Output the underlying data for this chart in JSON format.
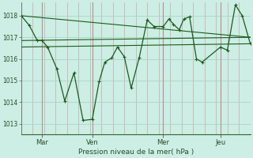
{
  "xlabel": "Pression niveau de la mer( hPa )",
  "bg_color": "#cceee4",
  "grid_color_h": "#aad4c8",
  "grid_color_v": "#c8a8a8",
  "line_color": "#1a5c1a",
  "ylim": [
    1012.5,
    1018.6
  ],
  "xlim": [
    0.0,
    10.0
  ],
  "yticks": [
    1013,
    1014,
    1015,
    1016,
    1017,
    1018
  ],
  "xtick_positions": [
    0.9,
    3.1,
    6.2,
    8.7
  ],
  "xtick_labels": [
    "Mar",
    "Ven",
    "Mer",
    "Jeu"
  ],
  "vline_positions": [
    0.9,
    3.1,
    6.2,
    8.7
  ],
  "num_vlines": 20,
  "main_series_x": [
    0.0,
    0.35,
    0.7,
    0.9,
    1.15,
    1.55,
    1.9,
    2.3,
    2.7,
    3.1,
    3.4,
    3.65,
    3.95,
    4.2,
    4.5,
    4.8,
    5.15,
    5.5,
    5.8,
    6.2,
    6.45,
    6.65,
    6.9,
    7.1,
    7.35,
    7.65,
    7.9,
    8.7,
    9.0,
    9.35,
    9.65,
    10.0
  ],
  "main_series_y": [
    1018.0,
    1017.55,
    1016.85,
    1016.85,
    1016.55,
    1015.55,
    1014.05,
    1015.35,
    1013.15,
    1013.2,
    1014.95,
    1015.85,
    1016.05,
    1016.55,
    1016.1,
    1014.65,
    1016.05,
    1017.8,
    1017.5,
    1017.5,
    1017.85,
    1017.6,
    1017.35,
    1017.85,
    1017.95,
    1016.0,
    1015.85,
    1016.55,
    1016.4,
    1018.5,
    1018.0,
    1016.7
  ],
  "trend_lines": [
    {
      "x": [
        0.0,
        10.0
      ],
      "y": [
        1018.0,
        1017.0
      ]
    },
    {
      "x": [
        0.0,
        10.0
      ],
      "y": [
        1016.85,
        1017.0
      ]
    },
    {
      "x": [
        0.0,
        10.0
      ],
      "y": [
        1016.55,
        1016.7
      ]
    }
  ]
}
